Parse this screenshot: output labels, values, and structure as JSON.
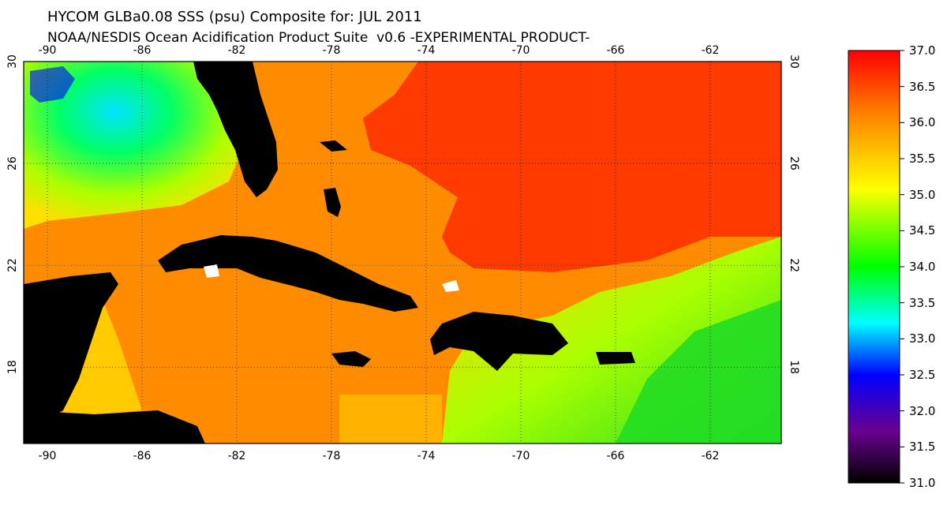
{
  "title": {
    "line1": "HYCOM GLBa0.08 SSS (psu) Composite for: JUL 2011",
    "line2": "NOAA/NESDIS Ocean Acidification Product Suite  v0.6 -EXPERIMENTAL PRODUCT-"
  },
  "map": {
    "lon_range": [
      -91,
      -59
    ],
    "lat_range": [
      15,
      30
    ],
    "lon_ticks": [
      {
        "value": -90,
        "label": "-90"
      },
      {
        "value": -86,
        "label": "-86"
      },
      {
        "value": -82,
        "label": "-82"
      },
      {
        "value": -78,
        "label": "-78"
      },
      {
        "value": -74,
        "label": "-74"
      },
      {
        "value": -70,
        "label": "-70"
      },
      {
        "value": -66,
        "label": "-66"
      },
      {
        "value": -62,
        "label": "-62"
      }
    ],
    "lat_ticks": [
      {
        "value": 30,
        "label": "30"
      },
      {
        "value": 26,
        "label": "26"
      },
      {
        "value": 22,
        "label": "22"
      },
      {
        "value": 18,
        "label": "18"
      }
    ],
    "grid": "dotted",
    "land_color": "#000000"
  },
  "colorbar": {
    "min": 31.0,
    "max": 37.0,
    "labels": [
      "37.0",
      "36.5",
      "36.0",
      "35.5",
      "35.0",
      "34.5",
      "34.0",
      "33.5",
      "33.0",
      "32.5",
      "32.0",
      "31.5",
      "31.0"
    ],
    "colors": [
      "#000000",
      "#6a0090",
      "#0000ff",
      "#00ffff",
      "#00ff00",
      "#ffff00",
      "#ff8c00",
      "#ff0000"
    ]
  }
}
